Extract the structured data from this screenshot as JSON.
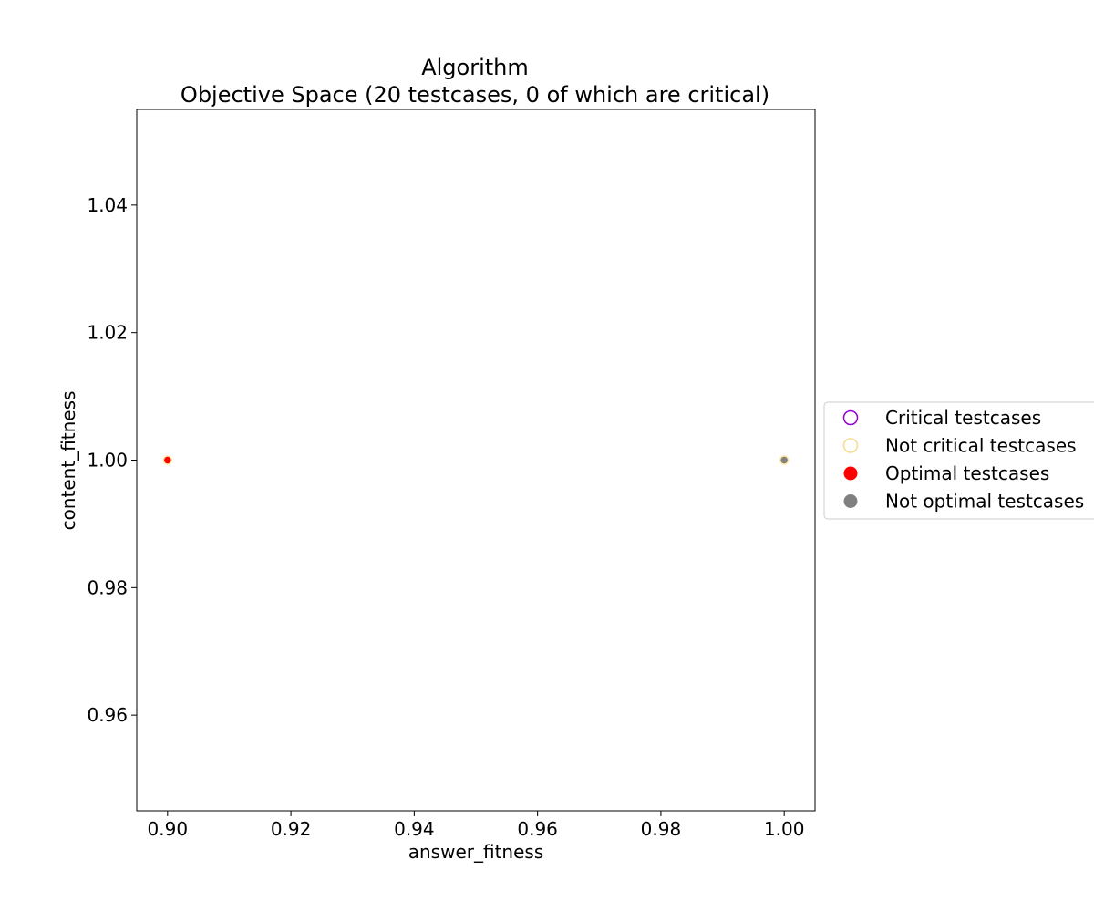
{
  "chart_data": {
    "type": "scatter",
    "title": "Algorithm",
    "subtitle": "Objective Space (20 testcases, 0 of which are critical)",
    "xlabel": "answer_fitness",
    "ylabel": "content_fitness",
    "xlim": [
      0.895,
      1.005
    ],
    "ylim": [
      0.945,
      1.055
    ],
    "x_ticks": [
      0.9,
      0.92,
      0.94,
      0.96,
      0.98,
      1.0
    ],
    "x_tick_labels": [
      "0.90",
      "0.92",
      "0.94",
      "0.96",
      "0.98",
      "1.00"
    ],
    "y_ticks": [
      0.96,
      0.98,
      1.0,
      1.02,
      1.04
    ],
    "y_tick_labels": [
      "0.96",
      "0.98",
      "1.00",
      "1.02",
      "1.04"
    ],
    "grid": false,
    "legend_placement": "right-outside",
    "series": [
      {
        "name": "Optimal testcases",
        "fill": "#ff0000",
        "edge": "#ffe8a0",
        "points": [
          {
            "x": 0.9,
            "y": 1.0
          }
        ]
      },
      {
        "name": "Not optimal testcases",
        "fill": "#808080",
        "edge": "#ffe8a0",
        "points": [
          {
            "x": 1.0,
            "y": 1.0
          }
        ]
      }
    ],
    "legend": [
      {
        "label": "Critical testcases",
        "marker": "hollow",
        "color": "#9400d3"
      },
      {
        "label": "Not critical testcases",
        "marker": "hollow",
        "color": "#f5dc8c"
      },
      {
        "label": "Optimal testcases",
        "marker": "filled",
        "color": "#ff0000"
      },
      {
        "label": "Not optimal testcases",
        "marker": "filled",
        "color": "#808080"
      }
    ]
  }
}
